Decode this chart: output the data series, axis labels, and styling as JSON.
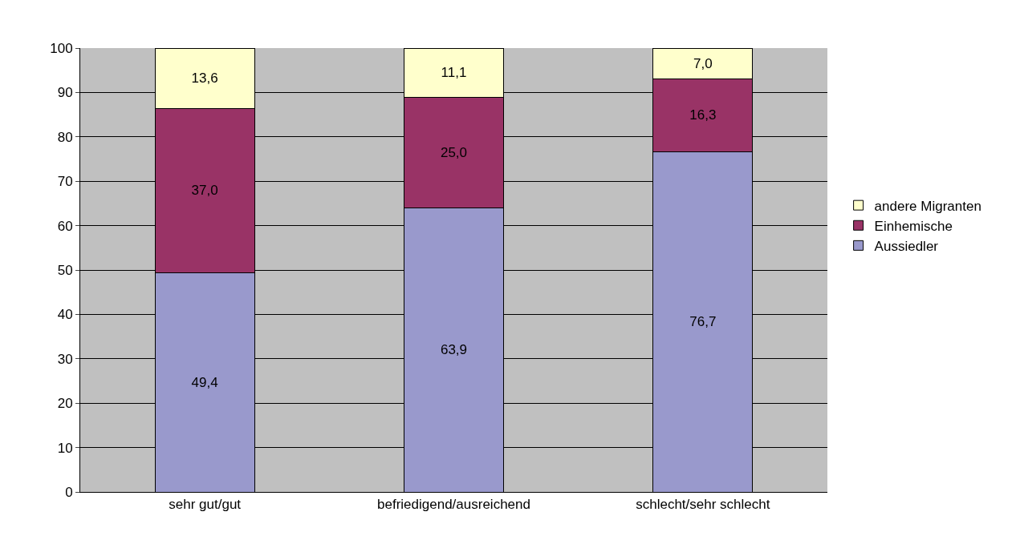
{
  "chart_data": {
    "type": "bar",
    "stacked": true,
    "categories": [
      "sehr gut/gut",
      "befriedigend/ausreichend",
      "schlecht/sehr schlecht"
    ],
    "series": [
      {
        "name": "Aussiedler",
        "color": "#9999cc",
        "values": [
          49.4,
          63.9,
          76.7
        ],
        "value_labels": [
          "49,4",
          "63,9",
          "76,7"
        ]
      },
      {
        "name": "Einhemische",
        "color": "#993366",
        "values": [
          37.0,
          25.0,
          16.3
        ],
        "value_labels": [
          "37,0",
          "25,0",
          "16,3"
        ]
      },
      {
        "name": "andere Migranten",
        "color": "#ffffcc",
        "values": [
          13.6,
          11.1,
          7.0
        ],
        "value_labels": [
          "13,6",
          "11,1",
          "7,0"
        ]
      }
    ],
    "ylim": [
      0,
      100
    ],
    "yticks": [
      0,
      10,
      20,
      30,
      40,
      50,
      60,
      70,
      80,
      90,
      100
    ],
    "grid": "y",
    "legend": "right"
  }
}
